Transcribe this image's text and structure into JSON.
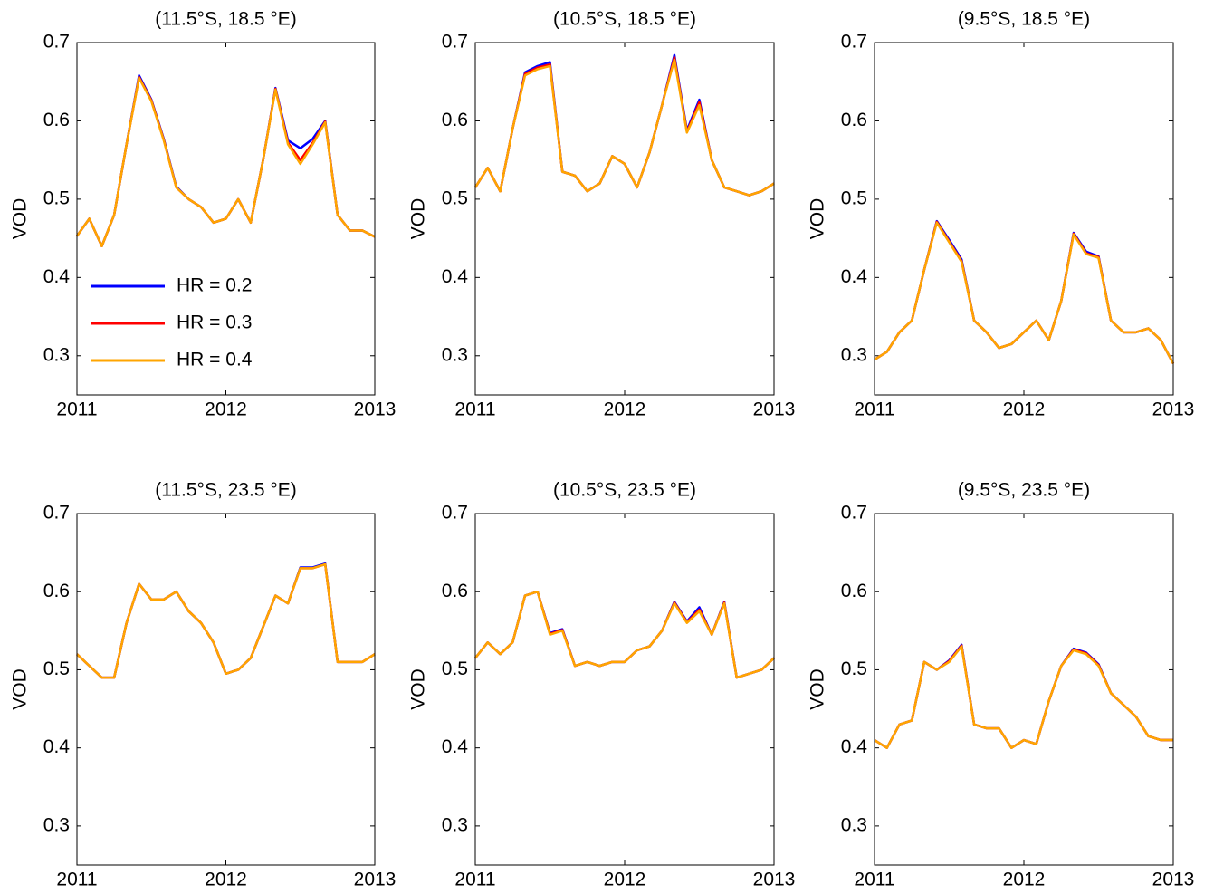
{
  "chart_data": [
    {
      "type": "line",
      "title": "(11.5°S, 18.5 °E)",
      "y_label": "VOD",
      "legend": "lower left",
      "x": [
        2011,
        2011.083,
        2011.167,
        2011.25,
        2011.333,
        2011.417,
        2011.5,
        2011.583,
        2011.667,
        2011.75,
        2011.833,
        2011.917,
        2012,
        2012.083,
        2012.167,
        2012.25,
        2012.333,
        2012.417,
        2012.5,
        2012.583,
        2012.667,
        2012.75,
        2012.833,
        2012.917,
        2013
      ],
      "xlim": [
        2011,
        2013
      ],
      "xticks": [
        2011,
        2012,
        2013
      ],
      "ylim": [
        0.25,
        0.7
      ],
      "yticks": [
        0.3,
        0.4,
        0.5,
        0.6,
        0.7
      ],
      "series": [
        {
          "name": "HR = 0.2",
          "color": "#0000ff",
          "values": [
            0.453,
            0.475,
            0.44,
            0.48,
            0.57,
            0.658,
            0.627,
            0.577,
            0.516,
            0.5,
            0.49,
            0.47,
            0.475,
            0.5,
            0.47,
            0.55,
            0.642,
            0.575,
            0.565,
            0.577,
            0.6,
            0.48,
            0.46,
            0.46,
            0.452
          ]
        },
        {
          "name": "HR = 0.3",
          "color": "#ff0000",
          "values": [
            0.453,
            0.475,
            0.44,
            0.48,
            0.57,
            0.656,
            0.626,
            0.576,
            0.515,
            0.5,
            0.49,
            0.47,
            0.475,
            0.5,
            0.47,
            0.55,
            0.641,
            0.572,
            0.55,
            0.572,
            0.599,
            0.48,
            0.46,
            0.46,
            0.452
          ]
        },
        {
          "name": "HR = 0.4",
          "color": "#ffa500",
          "values": [
            0.453,
            0.475,
            0.44,
            0.48,
            0.57,
            0.655,
            0.625,
            0.575,
            0.515,
            0.5,
            0.49,
            0.47,
            0.475,
            0.5,
            0.47,
            0.55,
            0.64,
            0.57,
            0.545,
            0.57,
            0.598,
            0.48,
            0.46,
            0.46,
            0.452
          ]
        }
      ]
    },
    {
      "type": "line",
      "title": "(10.5°S, 18.5 °E)",
      "y_label": "VOD",
      "x": [
        2011,
        2011.083,
        2011.167,
        2011.25,
        2011.333,
        2011.417,
        2011.5,
        2011.583,
        2011.667,
        2011.75,
        2011.833,
        2011.917,
        2012,
        2012.083,
        2012.167,
        2012.25,
        2012.333,
        2012.417,
        2012.5,
        2012.583,
        2012.667,
        2012.75,
        2012.833,
        2012.917,
        2013
      ],
      "xlim": [
        2011,
        2013
      ],
      "xticks": [
        2011,
        2012,
        2013
      ],
      "ylim": [
        0.25,
        0.7
      ],
      "yticks": [
        0.3,
        0.4,
        0.5,
        0.6,
        0.7
      ],
      "series": [
        {
          "color": "#0000ff",
          "values": [
            0.515,
            0.54,
            0.51,
            0.59,
            0.662,
            0.67,
            0.675,
            0.535,
            0.53,
            0.51,
            0.52,
            0.555,
            0.545,
            0.515,
            0.56,
            0.62,
            0.684,
            0.588,
            0.627,
            0.55,
            0.515,
            0.51,
            0.505,
            0.51,
            0.52
          ]
        },
        {
          "color": "#ff0000",
          "values": [
            0.515,
            0.54,
            0.51,
            0.59,
            0.66,
            0.668,
            0.672,
            0.535,
            0.53,
            0.51,
            0.52,
            0.555,
            0.545,
            0.515,
            0.56,
            0.62,
            0.681,
            0.586,
            0.624,
            0.55,
            0.515,
            0.51,
            0.505,
            0.51,
            0.52
          ]
        },
        {
          "color": "#ffa500",
          "values": [
            0.515,
            0.54,
            0.51,
            0.59,
            0.658,
            0.666,
            0.67,
            0.535,
            0.53,
            0.51,
            0.52,
            0.555,
            0.545,
            0.515,
            0.56,
            0.62,
            0.678,
            0.585,
            0.62,
            0.55,
            0.515,
            0.51,
            0.505,
            0.51,
            0.52
          ]
        }
      ]
    },
    {
      "type": "line",
      "title": "(9.5°S, 18.5 °E)",
      "y_label": "VOD",
      "x": [
        2011,
        2011.083,
        2011.167,
        2011.25,
        2011.333,
        2011.417,
        2011.5,
        2011.583,
        2011.667,
        2011.75,
        2011.833,
        2011.917,
        2012,
        2012.083,
        2012.167,
        2012.25,
        2012.333,
        2012.417,
        2012.5,
        2012.583,
        2012.667,
        2012.75,
        2012.833,
        2012.917,
        2013
      ],
      "xlim": [
        2011,
        2013
      ],
      "xticks": [
        2011,
        2012,
        2013
      ],
      "ylim": [
        0.25,
        0.7
      ],
      "yticks": [
        0.3,
        0.4,
        0.5,
        0.6,
        0.7
      ],
      "series": [
        {
          "color": "#0000ff",
          "values": [
            0.295,
            0.305,
            0.33,
            0.345,
            0.41,
            0.472,
            0.448,
            0.423,
            0.345,
            0.33,
            0.31,
            0.315,
            0.33,
            0.345,
            0.32,
            0.37,
            0.457,
            0.433,
            0.427,
            0.345,
            0.33,
            0.33,
            0.335,
            0.32,
            0.29
          ]
        },
        {
          "color": "#ff0000",
          "values": [
            0.295,
            0.305,
            0.33,
            0.345,
            0.41,
            0.471,
            0.446,
            0.421,
            0.345,
            0.33,
            0.31,
            0.315,
            0.33,
            0.345,
            0.32,
            0.37,
            0.456,
            0.431,
            0.426,
            0.345,
            0.33,
            0.33,
            0.335,
            0.32,
            0.29
          ]
        },
        {
          "color": "#ffa500",
          "values": [
            0.295,
            0.305,
            0.33,
            0.345,
            0.41,
            0.47,
            0.445,
            0.42,
            0.345,
            0.33,
            0.31,
            0.315,
            0.33,
            0.345,
            0.32,
            0.37,
            0.455,
            0.43,
            0.425,
            0.345,
            0.33,
            0.33,
            0.335,
            0.32,
            0.29
          ]
        }
      ]
    },
    {
      "type": "line",
      "title": "(11.5°S, 23.5 °E)",
      "y_label": "VOD",
      "x": [
        2011,
        2011.083,
        2011.167,
        2011.25,
        2011.333,
        2011.417,
        2011.5,
        2011.583,
        2011.667,
        2011.75,
        2011.833,
        2011.917,
        2012,
        2012.083,
        2012.167,
        2012.25,
        2012.333,
        2012.417,
        2012.5,
        2012.583,
        2012.667,
        2012.75,
        2012.833,
        2012.917,
        2013
      ],
      "xlim": [
        2011,
        2013
      ],
      "xticks": [
        2011,
        2012,
        2013
      ],
      "ylim": [
        0.25,
        0.7
      ],
      "yticks": [
        0.3,
        0.4,
        0.5,
        0.6,
        0.7
      ],
      "series": [
        {
          "color": "#0000ff",
          "values": [
            0.52,
            0.505,
            0.49,
            0.49,
            0.56,
            0.61,
            0.59,
            0.59,
            0.6,
            0.575,
            0.56,
            0.535,
            0.495,
            0.5,
            0.515,
            0.555,
            0.595,
            0.585,
            0.631,
            0.631,
            0.636,
            0.51,
            0.51,
            0.51,
            0.52
          ]
        },
        {
          "color": "#ff0000",
          "values": [
            0.52,
            0.505,
            0.49,
            0.49,
            0.56,
            0.61,
            0.59,
            0.59,
            0.6,
            0.575,
            0.56,
            0.535,
            0.495,
            0.5,
            0.515,
            0.555,
            0.595,
            0.585,
            0.63,
            0.63,
            0.635,
            0.51,
            0.51,
            0.51,
            0.52
          ]
        },
        {
          "color": "#ffa500",
          "values": [
            0.52,
            0.505,
            0.49,
            0.49,
            0.56,
            0.61,
            0.59,
            0.59,
            0.6,
            0.575,
            0.56,
            0.535,
            0.495,
            0.5,
            0.515,
            0.555,
            0.595,
            0.585,
            0.63,
            0.63,
            0.635,
            0.51,
            0.51,
            0.51,
            0.52
          ]
        }
      ]
    },
    {
      "type": "line",
      "title": "(10.5°S, 23.5 °E)",
      "y_label": "VOD",
      "x": [
        2011,
        2011.083,
        2011.167,
        2011.25,
        2011.333,
        2011.417,
        2011.5,
        2011.583,
        2011.667,
        2011.75,
        2011.833,
        2011.917,
        2012,
        2012.083,
        2012.167,
        2012.25,
        2012.333,
        2012.417,
        2012.5,
        2012.583,
        2012.667,
        2012.75,
        2012.833,
        2012.917,
        2013
      ],
      "xlim": [
        2011,
        2013
      ],
      "xticks": [
        2011,
        2012,
        2013
      ],
      "ylim": [
        0.25,
        0.7
      ],
      "yticks": [
        0.3,
        0.4,
        0.5,
        0.6,
        0.7
      ],
      "series": [
        {
          "color": "#0000ff",
          "values": [
            0.515,
            0.535,
            0.52,
            0.535,
            0.595,
            0.6,
            0.547,
            0.552,
            0.505,
            0.51,
            0.505,
            0.51,
            0.51,
            0.525,
            0.53,
            0.55,
            0.587,
            0.562,
            0.58,
            0.545,
            0.587,
            0.49,
            0.495,
            0.5,
            0.515
          ]
        },
        {
          "color": "#ff0000",
          "values": [
            0.515,
            0.535,
            0.52,
            0.535,
            0.595,
            0.6,
            0.546,
            0.551,
            0.505,
            0.51,
            0.505,
            0.51,
            0.51,
            0.525,
            0.53,
            0.55,
            0.586,
            0.561,
            0.577,
            0.545,
            0.586,
            0.49,
            0.495,
            0.5,
            0.515
          ]
        },
        {
          "color": "#ffa500",
          "values": [
            0.515,
            0.535,
            0.52,
            0.535,
            0.595,
            0.6,
            0.545,
            0.55,
            0.505,
            0.51,
            0.505,
            0.51,
            0.51,
            0.525,
            0.53,
            0.55,
            0.585,
            0.56,
            0.575,
            0.545,
            0.585,
            0.49,
            0.495,
            0.5,
            0.515
          ]
        }
      ]
    },
    {
      "type": "line",
      "title": "(9.5°S, 23.5 °E)",
      "y_label": "VOD",
      "x": [
        2011,
        2011.083,
        2011.167,
        2011.25,
        2011.333,
        2011.417,
        2011.5,
        2011.583,
        2011.667,
        2011.75,
        2011.833,
        2011.917,
        2012,
        2012.083,
        2012.167,
        2012.25,
        2012.333,
        2012.417,
        2012.5,
        2012.583,
        2012.667,
        2012.75,
        2012.833,
        2012.917,
        2013
      ],
      "xlim": [
        2011,
        2013
      ],
      "xticks": [
        2011,
        2012,
        2013
      ],
      "ylim": [
        0.25,
        0.7
      ],
      "yticks": [
        0.3,
        0.4,
        0.5,
        0.6,
        0.7
      ],
      "series": [
        {
          "color": "#0000ff",
          "values": [
            0.41,
            0.4,
            0.43,
            0.435,
            0.51,
            0.5,
            0.512,
            0.532,
            0.43,
            0.425,
            0.425,
            0.4,
            0.41,
            0.405,
            0.46,
            0.505,
            0.527,
            0.522,
            0.507,
            0.47,
            0.455,
            0.44,
            0.415,
            0.41,
            0.41
          ]
        },
        {
          "color": "#ff0000",
          "values": [
            0.41,
            0.4,
            0.43,
            0.435,
            0.51,
            0.5,
            0.511,
            0.531,
            0.43,
            0.425,
            0.425,
            0.4,
            0.41,
            0.405,
            0.46,
            0.505,
            0.526,
            0.521,
            0.506,
            0.47,
            0.455,
            0.44,
            0.415,
            0.41,
            0.41
          ]
        },
        {
          "color": "#ffa500",
          "values": [
            0.41,
            0.4,
            0.43,
            0.435,
            0.51,
            0.5,
            0.51,
            0.53,
            0.43,
            0.425,
            0.425,
            0.4,
            0.41,
            0.405,
            0.46,
            0.505,
            0.525,
            0.52,
            0.505,
            0.47,
            0.455,
            0.44,
            0.415,
            0.41,
            0.41
          ]
        }
      ]
    }
  ]
}
